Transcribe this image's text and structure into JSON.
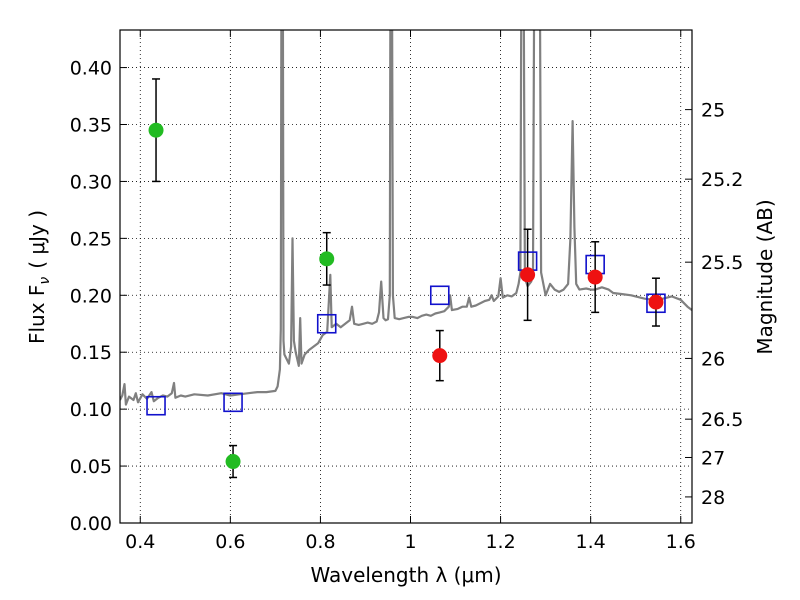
{
  "chart_data": {
    "type": "scatter",
    "xlabel": "Wavelength  λ (μm)",
    "ylabel": "Flux  F",
    "ylabel_sub": "ν",
    "ylabel_unit": "( μJy )",
    "ylabel_right": "Magnitude (AB)",
    "xlim": [
      0.355,
      1.625
    ],
    "ylim": [
      0,
      0.433
    ],
    "grid": true,
    "x_ticks": [
      0.4,
      0.6,
      0.8,
      1.0,
      1.2,
      1.4,
      1.6
    ],
    "x_tick_labels": [
      "0.4",
      "0.6",
      "0.8",
      "1",
      "1.2",
      "1.4",
      "1.6"
    ],
    "y_ticks": [
      0.0,
      0.05,
      0.1,
      0.15,
      0.2,
      0.25,
      0.3,
      0.35,
      0.4
    ],
    "y_tick_labels": [
      "0.00",
      "0.05",
      "0.10",
      "0.15",
      "0.20",
      "0.25",
      "0.30",
      "0.35",
      "0.40"
    ],
    "right_ticks": [
      {
        "mag": 25,
        "label": "25"
      },
      {
        "mag": 25.2,
        "label": "25.2"
      },
      {
        "mag": 25.5,
        "label": "25.5"
      },
      {
        "mag": 26,
        "label": "26"
      },
      {
        "mag": 26.5,
        "label": "26.5"
      },
      {
        "mag": 27,
        "label": "27"
      },
      {
        "mag": 28,
        "label": "28"
      }
    ],
    "colors": {
      "green": "#22bb22",
      "red": "#ee1111",
      "blue": "#1111cc",
      "model": "#808080"
    },
    "green_points": [
      {
        "x": 0.435,
        "y": 0.345,
        "err": 0.045
      },
      {
        "x": 0.606,
        "y": 0.054,
        "err": 0.014
      },
      {
        "x": 0.814,
        "y": 0.232,
        "err": 0.023
      }
    ],
    "red_points": [
      {
        "x": 1.065,
        "y": 0.147,
        "err": 0.022
      },
      {
        "x": 1.26,
        "y": 0.218,
        "err": 0.04
      },
      {
        "x": 1.41,
        "y": 0.216,
        "err": 0.031
      },
      {
        "x": 1.545,
        "y": 0.194,
        "err": 0.021
      }
    ],
    "blue_squares": [
      {
        "x": 0.435,
        "y": 0.103
      },
      {
        "x": 0.606,
        "y": 0.106
      },
      {
        "x": 0.814,
        "y": 0.175
      },
      {
        "x": 1.065,
        "y": 0.2
      },
      {
        "x": 1.26,
        "y": 0.23
      },
      {
        "x": 1.41,
        "y": 0.227
      },
      {
        "x": 1.545,
        "y": 0.193
      }
    ],
    "model_spectrum": [
      [
        0.355,
        0.108
      ],
      [
        0.36,
        0.112
      ],
      [
        0.365,
        0.122
      ],
      [
        0.368,
        0.104
      ],
      [
        0.375,
        0.111
      ],
      [
        0.385,
        0.108
      ],
      [
        0.39,
        0.114
      ],
      [
        0.395,
        0.106
      ],
      [
        0.405,
        0.113
      ],
      [
        0.415,
        0.109
      ],
      [
        0.425,
        0.115
      ],
      [
        0.43,
        0.107
      ],
      [
        0.44,
        0.11
      ],
      [
        0.45,
        0.112
      ],
      [
        0.46,
        0.111
      ],
      [
        0.47,
        0.114
      ],
      [
        0.475,
        0.123
      ],
      [
        0.478,
        0.11
      ],
      [
        0.49,
        0.112
      ],
      [
        0.5,
        0.111
      ],
      [
        0.52,
        0.113
      ],
      [
        0.55,
        0.112
      ],
      [
        0.58,
        0.114
      ],
      [
        0.6,
        0.112
      ],
      [
        0.62,
        0.113
      ],
      [
        0.64,
        0.114
      ],
      [
        0.66,
        0.115
      ],
      [
        0.68,
        0.115
      ],
      [
        0.7,
        0.116
      ],
      [
        0.705,
        0.12
      ],
      [
        0.71,
        0.135
      ],
      [
        0.712,
        0.17
      ],
      [
        0.714,
        0.6
      ],
      [
        0.716,
        0.6
      ],
      [
        0.718,
        0.16
      ],
      [
        0.72,
        0.148
      ],
      [
        0.73,
        0.14
      ],
      [
        0.735,
        0.155
      ],
      [
        0.738,
        0.25
      ],
      [
        0.741,
        0.16
      ],
      [
        0.745,
        0.15
      ],
      [
        0.752,
        0.138
      ],
      [
        0.755,
        0.18
      ],
      [
        0.758,
        0.14
      ],
      [
        0.765,
        0.148
      ],
      [
        0.775,
        0.152
      ],
      [
        0.785,
        0.155
      ],
      [
        0.795,
        0.158
      ],
      [
        0.805,
        0.165
      ],
      [
        0.815,
        0.168
      ],
      [
        0.822,
        0.218
      ],
      [
        0.825,
        0.172
      ],
      [
        0.835,
        0.175
      ],
      [
        0.845,
        0.172
      ],
      [
        0.855,
        0.175
      ],
      [
        0.865,
        0.178
      ],
      [
        0.87,
        0.19
      ],
      [
        0.875,
        0.175
      ],
      [
        0.885,
        0.174
      ],
      [
        0.895,
        0.175
      ],
      [
        0.905,
        0.176
      ],
      [
        0.915,
        0.175
      ],
      [
        0.925,
        0.177
      ],
      [
        0.93,
        0.185
      ],
      [
        0.935,
        0.212
      ],
      [
        0.94,
        0.18
      ],
      [
        0.945,
        0.178
      ],
      [
        0.95,
        0.179
      ],
      [
        0.954,
        0.2
      ],
      [
        0.956,
        0.6
      ],
      [
        0.958,
        0.6
      ],
      [
        0.961,
        0.2
      ],
      [
        0.965,
        0.18
      ],
      [
        0.975,
        0.179
      ],
      [
        0.985,
        0.18
      ],
      [
        0.995,
        0.181
      ],
      [
        1.005,
        0.181
      ],
      [
        1.015,
        0.18
      ],
      [
        1.025,
        0.182
      ],
      [
        1.035,
        0.183
      ],
      [
        1.045,
        0.182
      ],
      [
        1.055,
        0.184
      ],
      [
        1.065,
        0.185
      ],
      [
        1.075,
        0.186
      ],
      [
        1.085,
        0.19
      ],
      [
        1.088,
        0.2
      ],
      [
        1.092,
        0.187
      ],
      [
        1.105,
        0.188
      ],
      [
        1.115,
        0.19
      ],
      [
        1.125,
        0.19
      ],
      [
        1.13,
        0.198
      ],
      [
        1.135,
        0.19
      ],
      [
        1.145,
        0.191
      ],
      [
        1.155,
        0.193
      ],
      [
        1.165,
        0.195
      ],
      [
        1.175,
        0.196
      ],
      [
        1.18,
        0.2
      ],
      [
        1.185,
        0.195
      ],
      [
        1.195,
        0.199
      ],
      [
        1.2,
        0.215
      ],
      [
        1.205,
        0.198
      ],
      [
        1.215,
        0.2
      ],
      [
        1.225,
        0.199
      ],
      [
        1.235,
        0.202
      ],
      [
        1.24,
        0.21
      ],
      [
        1.244,
        0.22
      ],
      [
        1.247,
        0.6
      ],
      [
        1.25,
        0.6
      ],
      [
        1.254,
        0.215
      ],
      [
        1.26,
        0.208
      ],
      [
        1.268,
        0.212
      ],
      [
        1.272,
        0.22
      ],
      [
        1.276,
        0.6
      ],
      [
        1.286,
        0.6
      ],
      [
        1.29,
        0.22
      ],
      [
        1.3,
        0.2
      ],
      [
        1.31,
        0.21
      ],
      [
        1.32,
        0.205
      ],
      [
        1.33,
        0.203
      ],
      [
        1.34,
        0.205
      ],
      [
        1.35,
        0.21
      ],
      [
        1.355,
        0.25
      ],
      [
        1.36,
        0.353
      ],
      [
        1.364,
        0.26
      ],
      [
        1.368,
        0.21
      ],
      [
        1.375,
        0.205
      ],
      [
        1.39,
        0.206
      ],
      [
        1.4,
        0.205
      ],
      [
        1.41,
        0.205
      ],
      [
        1.425,
        0.207
      ],
      [
        1.44,
        0.205
      ],
      [
        1.45,
        0.202
      ],
      [
        1.47,
        0.201
      ],
      [
        1.49,
        0.2
      ],
      [
        1.5,
        0.199
      ],
      [
        1.52,
        0.197
      ],
      [
        1.54,
        0.196
      ],
      [
        1.56,
        0.197
      ],
      [
        1.58,
        0.199
      ],
      [
        1.6,
        0.196
      ],
      [
        1.615,
        0.19
      ],
      [
        1.625,
        0.187
      ]
    ]
  }
}
